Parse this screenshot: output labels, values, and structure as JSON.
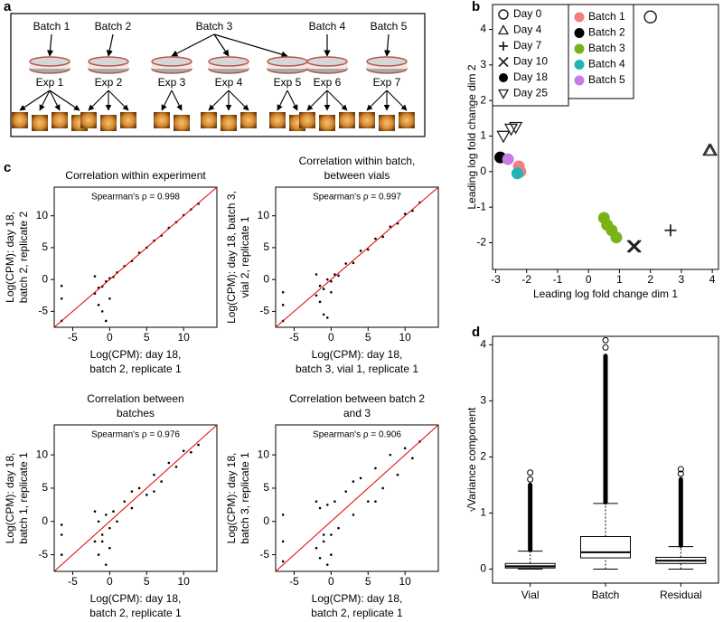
{
  "panel_labels": [
    "a",
    "b",
    "c",
    "d"
  ],
  "diagram": {
    "batches": [
      "Batch 1",
      "Batch 2",
      "Batch 3",
      "Batch 4",
      "Batch 5"
    ],
    "experiments": [
      "Exp 1",
      "Exp 2",
      "Exp 3",
      "Exp 4",
      "Exp 5",
      "Exp 6",
      "Exp 7"
    ]
  },
  "chart_data": [
    {
      "type": "scatter",
      "xlabel": [
        "Leading log fold change dim 1"
      ],
      "ylabel": [
        "Leading log fold change dim 2"
      ],
      "xlim": [
        -3.1,
        4.2
      ],
      "ylim": [
        -2.75,
        4.7
      ],
      "xticks": [
        -3,
        -2,
        -1,
        0,
        1,
        2,
        3,
        4
      ],
      "yticks": [
        -2,
        -1,
        0,
        1,
        2,
        3,
        4
      ],
      "shape_legend": [
        {
          "name": "Day 0",
          "shape": "circle"
        },
        {
          "name": "Day 4",
          "shape": "triangle"
        },
        {
          "name": "Day 7",
          "shape": "plus"
        },
        {
          "name": "Day 10",
          "shape": "cross"
        },
        {
          "name": "Day 18",
          "shape": "dot"
        },
        {
          "name": "Day 25",
          "shape": "triangle-down"
        }
      ],
      "color_legend": [
        {
          "name": "Batch 1",
          "color": "#f08080"
        },
        {
          "name": "Batch 2",
          "color": "#000000"
        },
        {
          "name": "Batch 3",
          "color": "#7ab317"
        },
        {
          "name": "Batch 4",
          "color": "#1fb5b5"
        },
        {
          "name": "Batch 5",
          "color": "#c77ce6"
        }
      ],
      "x": [
        2.0,
        3.95,
        3.9,
        2.65,
        1.45,
        1.5,
        -2.85,
        -2.6,
        -2.25,
        -2.2,
        -2.3,
        0.5,
        0.6,
        0.75,
        0.9,
        -2.75,
        -2.5,
        -2.35
      ],
      "y": [
        4.35,
        0.6,
        0.6,
        -1.65,
        -2.1,
        -2.1,
        0.4,
        0.35,
        0.15,
        0,
        -0.05,
        -1.3,
        -1.5,
        -1.65,
        -1.85,
        1.0,
        1.2,
        1.25
      ],
      "day": [
        0,
        1,
        1,
        2,
        3,
        3,
        4,
        4,
        4,
        4,
        4,
        4,
        4,
        4,
        4,
        5,
        5,
        5
      ],
      "batch": [
        null,
        null,
        null,
        null,
        null,
        null,
        1,
        4,
        0,
        0,
        3,
        2,
        2,
        2,
        2,
        null,
        null,
        null
      ]
    },
    {
      "type": "scatter",
      "title": [
        "Correlation within experiment"
      ],
      "annotation": "Spearman's ρ = 0.998",
      "xlabel": [
        "Log(CPM): day 18,",
        "batch 2, replicate 1"
      ],
      "ylabel": [
        "Log(CPM): day 18,",
        "batch 2, replicate 2"
      ],
      "xlim": [
        -7.5,
        14.5
      ],
      "ylim": [
        -7.5,
        14.5
      ],
      "xticks": [
        -5,
        0,
        5,
        10
      ],
      "yticks": [
        -5,
        0,
        5,
        10
      ],
      "color": "#000000",
      "line_color": "#e00000",
      "x": [
        -6.5,
        -6.5,
        -6.5,
        -2,
        -1.5,
        -1,
        -0.5,
        0,
        0.5,
        1,
        2,
        3,
        4,
        5,
        6,
        7,
        8,
        9,
        10,
        11,
        12,
        -1.5,
        -1,
        -0.5,
        0,
        -2
      ],
      "y": [
        -1,
        -3,
        -6.5,
        -2.2,
        -1.3,
        -1.1,
        -0.3,
        0.2,
        0.4,
        1.1,
        2.1,
        2.9,
        4.2,
        5,
        6.1,
        6.9,
        8.1,
        9,
        10.1,
        11,
        11.9,
        -4,
        -5,
        -6.5,
        -3,
        0.5
      ]
    },
    {
      "type": "scatter",
      "title": [
        "Correlation within batch,",
        "between vials"
      ],
      "annotation": "Spearman's ρ = 0.997",
      "xlabel": [
        "Log(CPM): day 18,",
        "batch 3, vial 1, replicate 1"
      ],
      "ylabel": [
        "Log(CPM): day 18, batch 3,",
        "vial 2, replicate 1"
      ],
      "xlim": [
        -7.5,
        14.5
      ],
      "ylim": [
        -7.5,
        14.5
      ],
      "xticks": [
        -5,
        0,
        5,
        10
      ],
      "yticks": [
        -5,
        0,
        5,
        10
      ],
      "color": "#000000",
      "line_color": "#e00000",
      "x": [
        -6.5,
        -6.5,
        -6.5,
        -2,
        -1.5,
        -1,
        -0.5,
        0,
        0.5,
        1,
        2,
        3,
        4,
        5,
        6,
        7,
        8,
        9,
        10,
        11,
        12,
        -1.5,
        -1,
        -0.5,
        0,
        -2
      ],
      "y": [
        -2,
        -4,
        -6.5,
        -2.5,
        -1,
        -1.5,
        0,
        -0.3,
        0.8,
        0.6,
        2.5,
        2.6,
        4.5,
        4.7,
        6.4,
        6.7,
        8.3,
        8.8,
        10.3,
        10.8,
        12.1,
        -3.5,
        -5.5,
        -6,
        -2,
        0.8
      ]
    },
    {
      "type": "scatter",
      "title": [
        "Correlation between",
        "batches"
      ],
      "annotation": "Spearman's ρ = 0.976",
      "xlabel": [
        "Log(CPM): day 18,",
        "batch 2, replicate 1"
      ],
      "ylabel": [
        "Log(CPM): day 18,",
        "batch 1, replicate 1"
      ],
      "xlim": [
        -7.5,
        14.5
      ],
      "ylim": [
        -7.5,
        14.5
      ],
      "xticks": [
        -5,
        0,
        5,
        10
      ],
      "yticks": [
        -5,
        0,
        5,
        10
      ],
      "color": "#000000",
      "line_color": "#e00000",
      "x": [
        -6.5,
        -6.5,
        -6.5,
        -2,
        -1.5,
        -1,
        -0.5,
        0,
        0.5,
        1,
        2,
        3,
        4,
        5,
        6,
        7,
        8,
        9,
        10,
        11,
        12,
        -1.5,
        -1,
        -0.5,
        0,
        -2,
        3,
        6
      ],
      "y": [
        -2,
        -0.5,
        -5,
        -3,
        0,
        -2,
        1,
        -1,
        1.5,
        0,
        3,
        2,
        5,
        4,
        7,
        6,
        8.8,
        8.2,
        10.6,
        10.4,
        11.5,
        -5,
        -3,
        -6.5,
        -4,
        1.5,
        4.5,
        4.5
      ]
    },
    {
      "type": "scatter",
      "title": [
        "Correlation between batch 2",
        "and 3"
      ],
      "annotation": "Spearman's ρ = 0.906",
      "xlabel": [
        "Log(CPM): day 18,",
        "batch 2, replicate 1"
      ],
      "ylabel": [
        "Log(CPM): day 18,",
        "batch 3, replicate 1"
      ],
      "xlim": [
        -7.5,
        14.5
      ],
      "ylim": [
        -7.5,
        14.5
      ],
      "xticks": [
        -5,
        0,
        5,
        10
      ],
      "yticks": [
        -5,
        0,
        5,
        10
      ],
      "color": "#000000",
      "line_color": "#e00000",
      "x": [
        -6.5,
        -6.5,
        -6.5,
        -2,
        -1.5,
        -1,
        -0.5,
        0,
        0.5,
        1,
        2,
        3,
        4,
        5,
        6,
        7,
        8,
        9,
        10,
        11,
        12,
        -1.5,
        -1,
        -0.5,
        0,
        -2,
        3,
        6
      ],
      "y": [
        -3,
        1,
        -6,
        -4,
        2,
        -3,
        2.5,
        -2,
        3,
        -1,
        4.5,
        1,
        6.5,
        3,
        8,
        5,
        10,
        7,
        11,
        9.5,
        12,
        -5.5,
        -2,
        -6.5,
        -5,
        3,
        6,
        3
      ]
    },
    {
      "type": "box",
      "ylabel": [
        "√Variance component"
      ],
      "categories": [
        "Vial",
        "Batch",
        "Residual"
      ],
      "ylim": [
        -0.25,
        4.15
      ],
      "yticks": [
        0,
        1,
        2,
        3,
        4
      ],
      "min": [
        0,
        0,
        0
      ],
      "q1": [
        0.02,
        0.2,
        0.1
      ],
      "median": [
        0.05,
        0.3,
        0.15
      ],
      "q3": [
        0.1,
        0.58,
        0.21
      ],
      "max": [
        0.32,
        1.17,
        0.4
      ],
      "outlier_min": [
        0.34,
        1.19,
        0.42
      ],
      "outlier_max": [
        1.5,
        3.8,
        1.6
      ],
      "outliers": [
        [
          1.6,
          1.72
        ],
        [
          3.95,
          4.08
        ],
        [
          1.7,
          1.78
        ]
      ]
    }
  ]
}
